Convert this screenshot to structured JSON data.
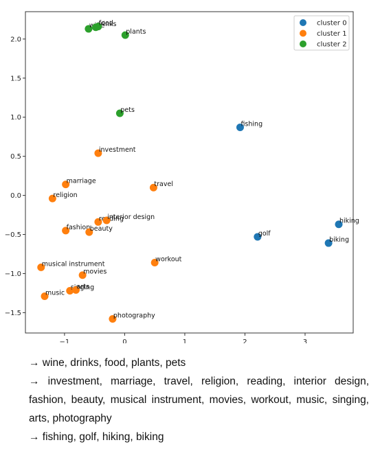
{
  "chart_data": {
    "type": "scatter",
    "title": "",
    "xlabel": "",
    "ylabel": "",
    "xlim": [
      -1.65,
      3.8
    ],
    "ylim": [
      -1.76,
      2.35
    ],
    "xticks": [
      -1,
      0,
      1,
      2,
      3
    ],
    "xtick_labels": [
      "−1",
      "0",
      "1",
      "2",
      "3"
    ],
    "yticks": [
      -1.5,
      -1.0,
      -0.5,
      0.0,
      0.5,
      1.0,
      1.5,
      2.0
    ],
    "ytick_labels": [
      "−1.5",
      "−1.0",
      "−0.5",
      "0.0",
      "0.5",
      "1.0",
      "1.5",
      "2.0"
    ],
    "grid": false,
    "legend_position": "top-right",
    "series": [
      {
        "name": "cluster 0",
        "color": "#1f77b4",
        "points": [
          {
            "label": "fishing",
            "x": 1.92,
            "y": 0.87
          },
          {
            "label": "golf",
            "x": 2.21,
            "y": -0.53
          },
          {
            "label": "hiking",
            "x": 3.56,
            "y": -0.37
          },
          {
            "label": "biking",
            "x": 3.39,
            "y": -0.61
          }
        ]
      },
      {
        "name": "cluster 1",
        "color": "#ff7f0e",
        "points": [
          {
            "label": "investment",
            "x": -0.44,
            "y": 0.54
          },
          {
            "label": "marriage",
            "x": -0.98,
            "y": 0.14
          },
          {
            "label": "travel",
            "x": 0.48,
            "y": 0.1
          },
          {
            "label": "religion",
            "x": -1.2,
            "y": -0.04
          },
          {
            "label": "reading",
            "x": -0.44,
            "y": -0.34
          },
          {
            "label": "interior design",
            "x": -0.3,
            "y": -0.32
          },
          {
            "label": "fashion",
            "x": -0.98,
            "y": -0.45
          },
          {
            "label": "beauty",
            "x": -0.59,
            "y": -0.47
          },
          {
            "label": "musical instrument",
            "x": -1.39,
            "y": -0.92
          },
          {
            "label": "movies",
            "x": -0.7,
            "y": -1.02
          },
          {
            "label": "workout",
            "x": 0.5,
            "y": -0.86
          },
          {
            "label": "singing",
            "x": -0.91,
            "y": -1.22
          },
          {
            "label": "arts",
            "x": -0.81,
            "y": -1.21
          },
          {
            "label": "music",
            "x": -1.33,
            "y": -1.29
          },
          {
            "label": "photography",
            "x": -0.2,
            "y": -1.58
          }
        ]
      },
      {
        "name": "cluster 2",
        "color": "#2ca02c",
        "points": [
          {
            "label": "wine",
            "x": -0.6,
            "y": 2.13
          },
          {
            "label": "drinks",
            "x": -0.48,
            "y": 2.15
          },
          {
            "label": "food",
            "x": -0.44,
            "y": 2.16
          },
          {
            "label": "plants",
            "x": 0.01,
            "y": 2.05
          },
          {
            "label": "pets",
            "x": -0.08,
            "y": 1.05
          }
        ]
      }
    ]
  },
  "captions": [
    "→ wine, drinks, food, plants, pets",
    "→ investment, marriage, travel, religion, reading, interior design, fashion, beauty, musical instrument, movies, workout, music, singing, arts, photography",
    "→ fishing, golf, hiking, biking"
  ]
}
